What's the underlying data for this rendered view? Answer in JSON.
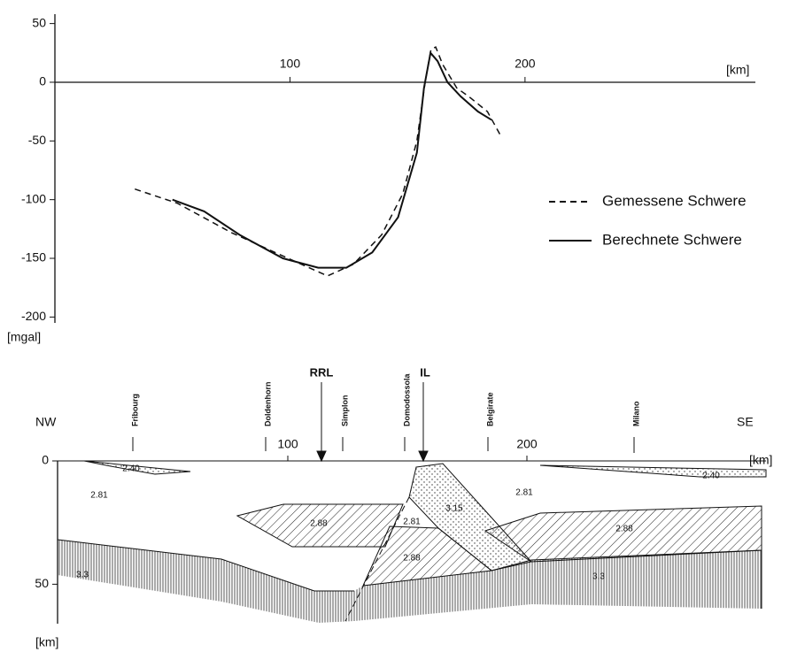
{
  "chart_data": [
    {
      "type": "line",
      "x_label": "[km]",
      "y_label": "[mgal]",
      "xlim": [
        0,
        298
      ],
      "ylim": [
        -205,
        58
      ],
      "xticks": [
        100,
        200
      ],
      "yticks": [
        50,
        0,
        -50,
        -100,
        -150,
        -200
      ],
      "legend": "right",
      "series": [
        {
          "name": "Gemessene Schwere",
          "color": "#111111",
          "dash": "dashed",
          "x": [
            34,
            52,
            75,
            97,
            116,
            127,
            139,
            148,
            154,
            157.5,
            160,
            162,
            165,
            171,
            176,
            184,
            189.5
          ],
          "values": [
            -91,
            -103,
            -128,
            -148,
            -165,
            -155,
            -130,
            -95,
            -50,
            0,
            28,
            30,
            15,
            -5,
            -12,
            -25,
            -45
          ]
        },
        {
          "name": "Berechnete Schwere",
          "color": "#111111",
          "dash": "solid",
          "x": [
            50,
            63.5,
            78.6,
            97,
            112,
            124,
            135,
            146,
            154,
            157,
            159.8,
            162.8,
            167,
            172.6,
            180,
            185.7
          ],
          "values": [
            -100,
            -110,
            -130,
            -150,
            -158,
            -158,
            -145,
            -115,
            -60,
            -5,
            25,
            18,
            0,
            -12,
            -25,
            -32
          ]
        }
      ]
    },
    {
      "type": "cross-section",
      "x_label": "[km]",
      "y_label": "[km]",
      "xlim": [
        3.7,
        300
      ],
      "ylim": [
        0,
        66
      ],
      "xticks": [
        100,
        200
      ],
      "yticks": [
        0,
        50
      ],
      "ends": [
        "NW",
        "SE"
      ],
      "places": [
        "Fribourg",
        "Doldenhorn",
        "Simplon",
        "Domodossola",
        "Belgirate",
        "Milano"
      ],
      "markers": [
        "RRL",
        "IL"
      ],
      "densities": [
        "2.40",
        "2.40",
        "2.81",
        "2.81",
        "2.81",
        "2.88",
        "2.88",
        "2.88",
        "3.15",
        "3.3",
        "3.3"
      ]
    }
  ]
}
